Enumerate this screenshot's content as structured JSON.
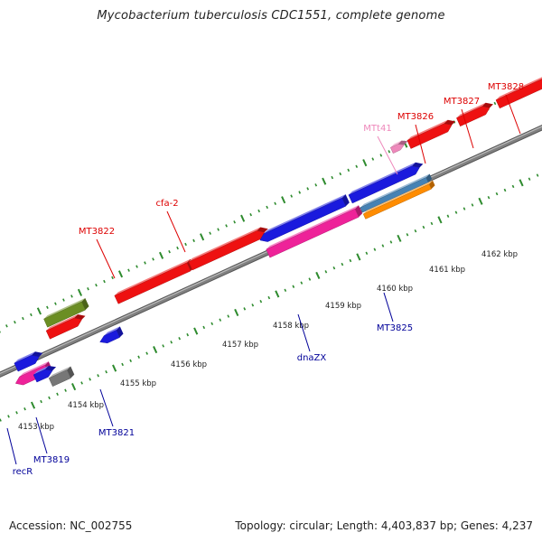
{
  "title": "Mycobacterium tuberculosis CDC1551, complete genome",
  "accession": "Accession: NC_002755",
  "topology": "Topology: circular; Length: 4,403,837 bp; Genes: 4,237",
  "colors": {
    "backbone": "#808080",
    "tick": "#2e8b2e",
    "red": "#ee1111",
    "blue": "#1a1add",
    "magenta": "#ee2299",
    "olive": "#6b8e23",
    "gray": "#777777",
    "steelblue": "#4682b4",
    "orange": "#ff8c00",
    "pink": "#ee88bb",
    "label_red": "#dd0000",
    "label_blue": "#000099",
    "label_pink": "#ee88bb"
  },
  "scale_ticks": [
    "4153 kbp",
    "4154 kbp",
    "4155 kbp",
    "4156 kbp",
    "4157 kbp",
    "4158 kbp",
    "4159 kbp",
    "4160 kbp",
    "4161 kbp",
    "4162 kbp"
  ],
  "gene_labels_top": [
    {
      "text": "MT3822",
      "color": "red"
    },
    {
      "text": "cfa-2",
      "color": "red"
    },
    {
      "text": "MTt41",
      "color": "pink"
    },
    {
      "text": "MT3826",
      "color": "red"
    },
    {
      "text": "MT3827",
      "color": "red"
    },
    {
      "text": "MT3828",
      "color": "red"
    }
  ],
  "gene_labels_bottom": [
    {
      "text": "recR",
      "color": "blue"
    },
    {
      "text": "MT3819",
      "color": "blue"
    },
    {
      "text": "MT3821",
      "color": "blue"
    },
    {
      "text": "dnaZX",
      "color": "blue"
    },
    {
      "text": "MT3825",
      "color": "blue"
    }
  ]
}
